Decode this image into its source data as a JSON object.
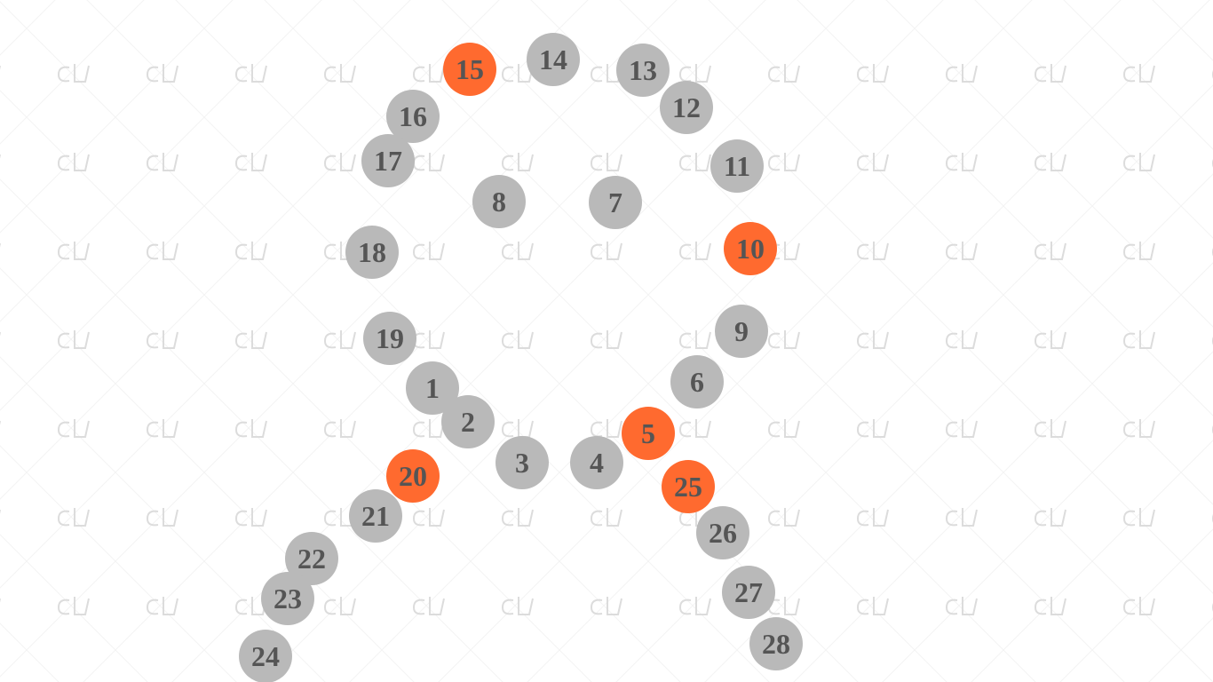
{
  "puzzle": {
    "type": "connect-the-dots",
    "watermark_text": "cL",
    "colors": {
      "background": "#ffffff",
      "dot": "#b9b9b9",
      "dot_highlight": "#ff6a2f",
      "dot_text": "#555555",
      "watermark": "#dedede"
    },
    "dots": [
      {
        "label": "1",
        "highlight": false
      },
      {
        "label": "2",
        "highlight": false
      },
      {
        "label": "3",
        "highlight": false
      },
      {
        "label": "4",
        "highlight": false
      },
      {
        "label": "5",
        "highlight": true
      },
      {
        "label": "6",
        "highlight": false
      },
      {
        "label": "7",
        "highlight": false
      },
      {
        "label": "8",
        "highlight": false
      },
      {
        "label": "9",
        "highlight": false
      },
      {
        "label": "10",
        "highlight": true
      },
      {
        "label": "11",
        "highlight": false
      },
      {
        "label": "12",
        "highlight": false
      },
      {
        "label": "13",
        "highlight": false
      },
      {
        "label": "14",
        "highlight": false
      },
      {
        "label": "15",
        "highlight": true
      },
      {
        "label": "16",
        "highlight": false
      },
      {
        "label": "17",
        "highlight": false
      },
      {
        "label": "18",
        "highlight": false
      },
      {
        "label": "19",
        "highlight": false
      },
      {
        "label": "20",
        "highlight": true
      },
      {
        "label": "21",
        "highlight": false
      },
      {
        "label": "22",
        "highlight": false
      },
      {
        "label": "23",
        "highlight": false
      },
      {
        "label": "24",
        "highlight": false
      },
      {
        "label": "25",
        "highlight": true
      },
      {
        "label": "26",
        "highlight": false
      },
      {
        "label": "27",
        "highlight": false
      },
      {
        "label": "28",
        "highlight": false
      }
    ]
  }
}
